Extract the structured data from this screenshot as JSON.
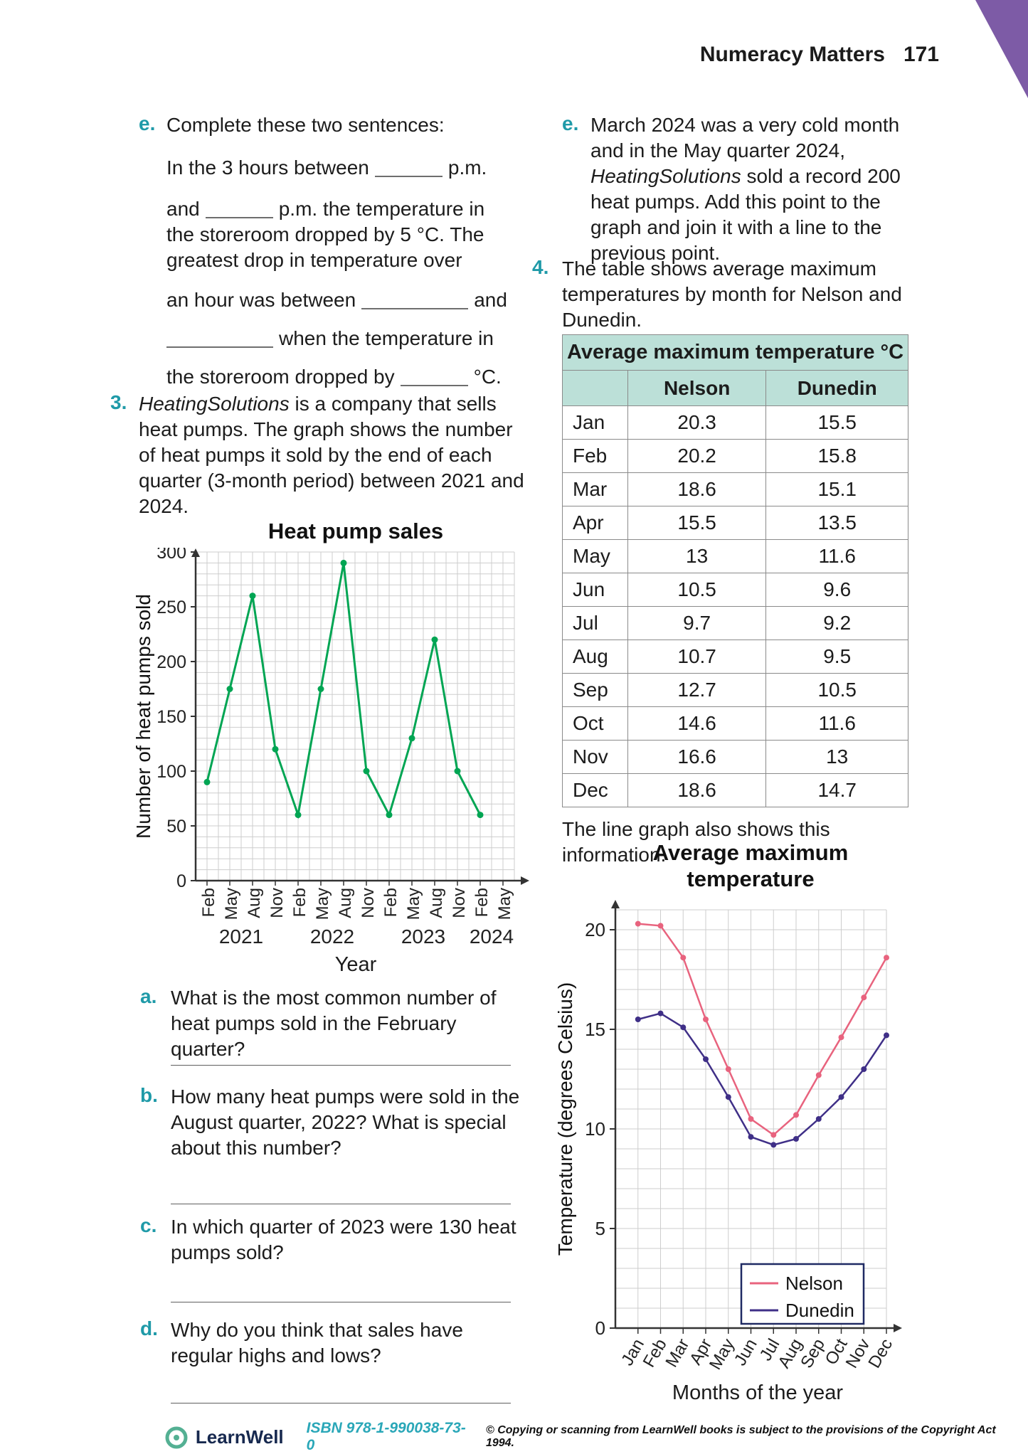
{
  "header": {
    "title": "Numeracy Matters",
    "page_number": "171"
  },
  "colors": {
    "accent_teal": "#1f9aa8",
    "table_header_bg": "#bce0d8",
    "heat_pump_line": "#00a553",
    "nelson_line": "#e8637e",
    "dunedin_line": "#3f2f87",
    "corner_purple": "#7d5ba6",
    "isbn_teal": "#2aa7b8"
  },
  "left": {
    "question_e": {
      "label": "e.",
      "intro": "Complete these two sentences:",
      "s1_pre": "In the 3 hours between",
      "s1_post": "p.m.",
      "s2_pre": "and",
      "s2_post": "p.m. the temperature in the storeroom dropped by 5 °C. The greatest drop in temperature over",
      "s3_pre": "an hour was between",
      "s3_post": "and",
      "s4_post": "when the temperature in",
      "s5_pre": "the storeroom dropped by",
      "s5_post": "°C."
    },
    "question_3": {
      "label": "3.",
      "company": "HeatingSolutions",
      "text": " is a company that sells heat pumps. The graph shows the number of heat pumps it sold by the end of each quarter (3-month period) between 2021 and 2024."
    },
    "question_a": {
      "label": "a.",
      "text": "What is the most common number of heat pumps sold in the February quarter?"
    },
    "question_b": {
      "label": "b.",
      "text": "How many heat pumps were sold in the August quarter, 2022? What is special about this number?"
    },
    "question_c": {
      "label": "c.",
      "text": "In which quarter of 2023 were 130 heat pumps sold?"
    },
    "question_d": {
      "label": "d.",
      "text": "Why do you think that sales have regular highs and lows?"
    }
  },
  "right": {
    "question_e": {
      "label": "e.",
      "pre": "March 2024 was a very cold month and in the May quarter 2024, ",
      "company": "HeatingSolutions",
      "post": " sold a record 200 heat pumps. Add this point to the graph and join it with a line to the previous point."
    },
    "question_4": {
      "label": "4.",
      "text": "The table shows average maximum temperatures by month for Nelson and Dunedin."
    },
    "table": {
      "title": "Average maximum temperature °C",
      "columns": [
        "",
        "Nelson",
        "Dunedin"
      ],
      "rows": [
        [
          "Jan",
          "20.3",
          "15.5"
        ],
        [
          "Feb",
          "20.2",
          "15.8"
        ],
        [
          "Mar",
          "18.6",
          "15.1"
        ],
        [
          "Apr",
          "15.5",
          "13.5"
        ],
        [
          "May",
          "13",
          "11.6"
        ],
        [
          "Jun",
          "10.5",
          "9.6"
        ],
        [
          "Jul",
          "9.7",
          "9.2"
        ],
        [
          "Aug",
          "10.7",
          "9.5"
        ],
        [
          "Sep",
          "12.7",
          "10.5"
        ],
        [
          "Oct",
          "14.6",
          "11.6"
        ],
        [
          "Nov",
          "16.6",
          "13"
        ],
        [
          "Dec",
          "18.6",
          "14.7"
        ]
      ]
    },
    "graph_caption": "The line graph also shows this information."
  },
  "chart_data": [
    {
      "type": "line",
      "title": "Heat pump sales",
      "xlabel": "Year",
      "ylabel": "Number of heat pumps sold",
      "categories": [
        "Feb",
        "May",
        "Aug",
        "Nov",
        "Feb",
        "May",
        "Aug",
        "Nov",
        "Feb",
        "May",
        "Aug",
        "Nov",
        "Feb",
        "May"
      ],
      "year_labels": [
        "2021",
        "2022",
        "2023",
        "2024"
      ],
      "series": [
        {
          "name": "Heat pumps sold",
          "color": "#00a553",
          "values": [
            90,
            175,
            260,
            120,
            60,
            175,
            290,
            100,
            60,
            130,
            220,
            100,
            60
          ]
        }
      ],
      "ylim": [
        0,
        300
      ],
      "ytick_step": 50,
      "grid_step_y": 10,
      "grid": true,
      "legend": false
    },
    {
      "type": "line",
      "title": "Average maximum temperature",
      "xlabel": "Months of the year",
      "ylabel": "Temperature (degrees Celsius)",
      "categories": [
        "Jan",
        "Feb",
        "Mar",
        "Apr",
        "May",
        "Jun",
        "Jul",
        "Aug",
        "Sep",
        "Oct",
        "Nov",
        "Dec"
      ],
      "series": [
        {
          "name": "Nelson",
          "color": "#e8637e",
          "values": [
            20.3,
            20.2,
            18.6,
            15.5,
            13,
            10.5,
            9.7,
            10.7,
            12.7,
            14.6,
            16.6,
            18.6
          ]
        },
        {
          "name": "Dunedin",
          "color": "#3f2f87",
          "values": [
            15.5,
            15.8,
            15.1,
            13.5,
            11.6,
            9.6,
            9.2,
            9.5,
            10.5,
            11.6,
            13,
            14.7
          ]
        }
      ],
      "ylim": [
        0,
        21
      ],
      "ytick_step": 5,
      "grid_step_y": 1,
      "grid": true,
      "legend_position": "lower right"
    }
  ],
  "footer": {
    "brand": "LearnWell",
    "isbn": "ISBN 978-1-990038-73-0",
    "copyright": "© Copying or scanning from LearnWell books is subject to the provisions of the Copyright Act 1994."
  }
}
